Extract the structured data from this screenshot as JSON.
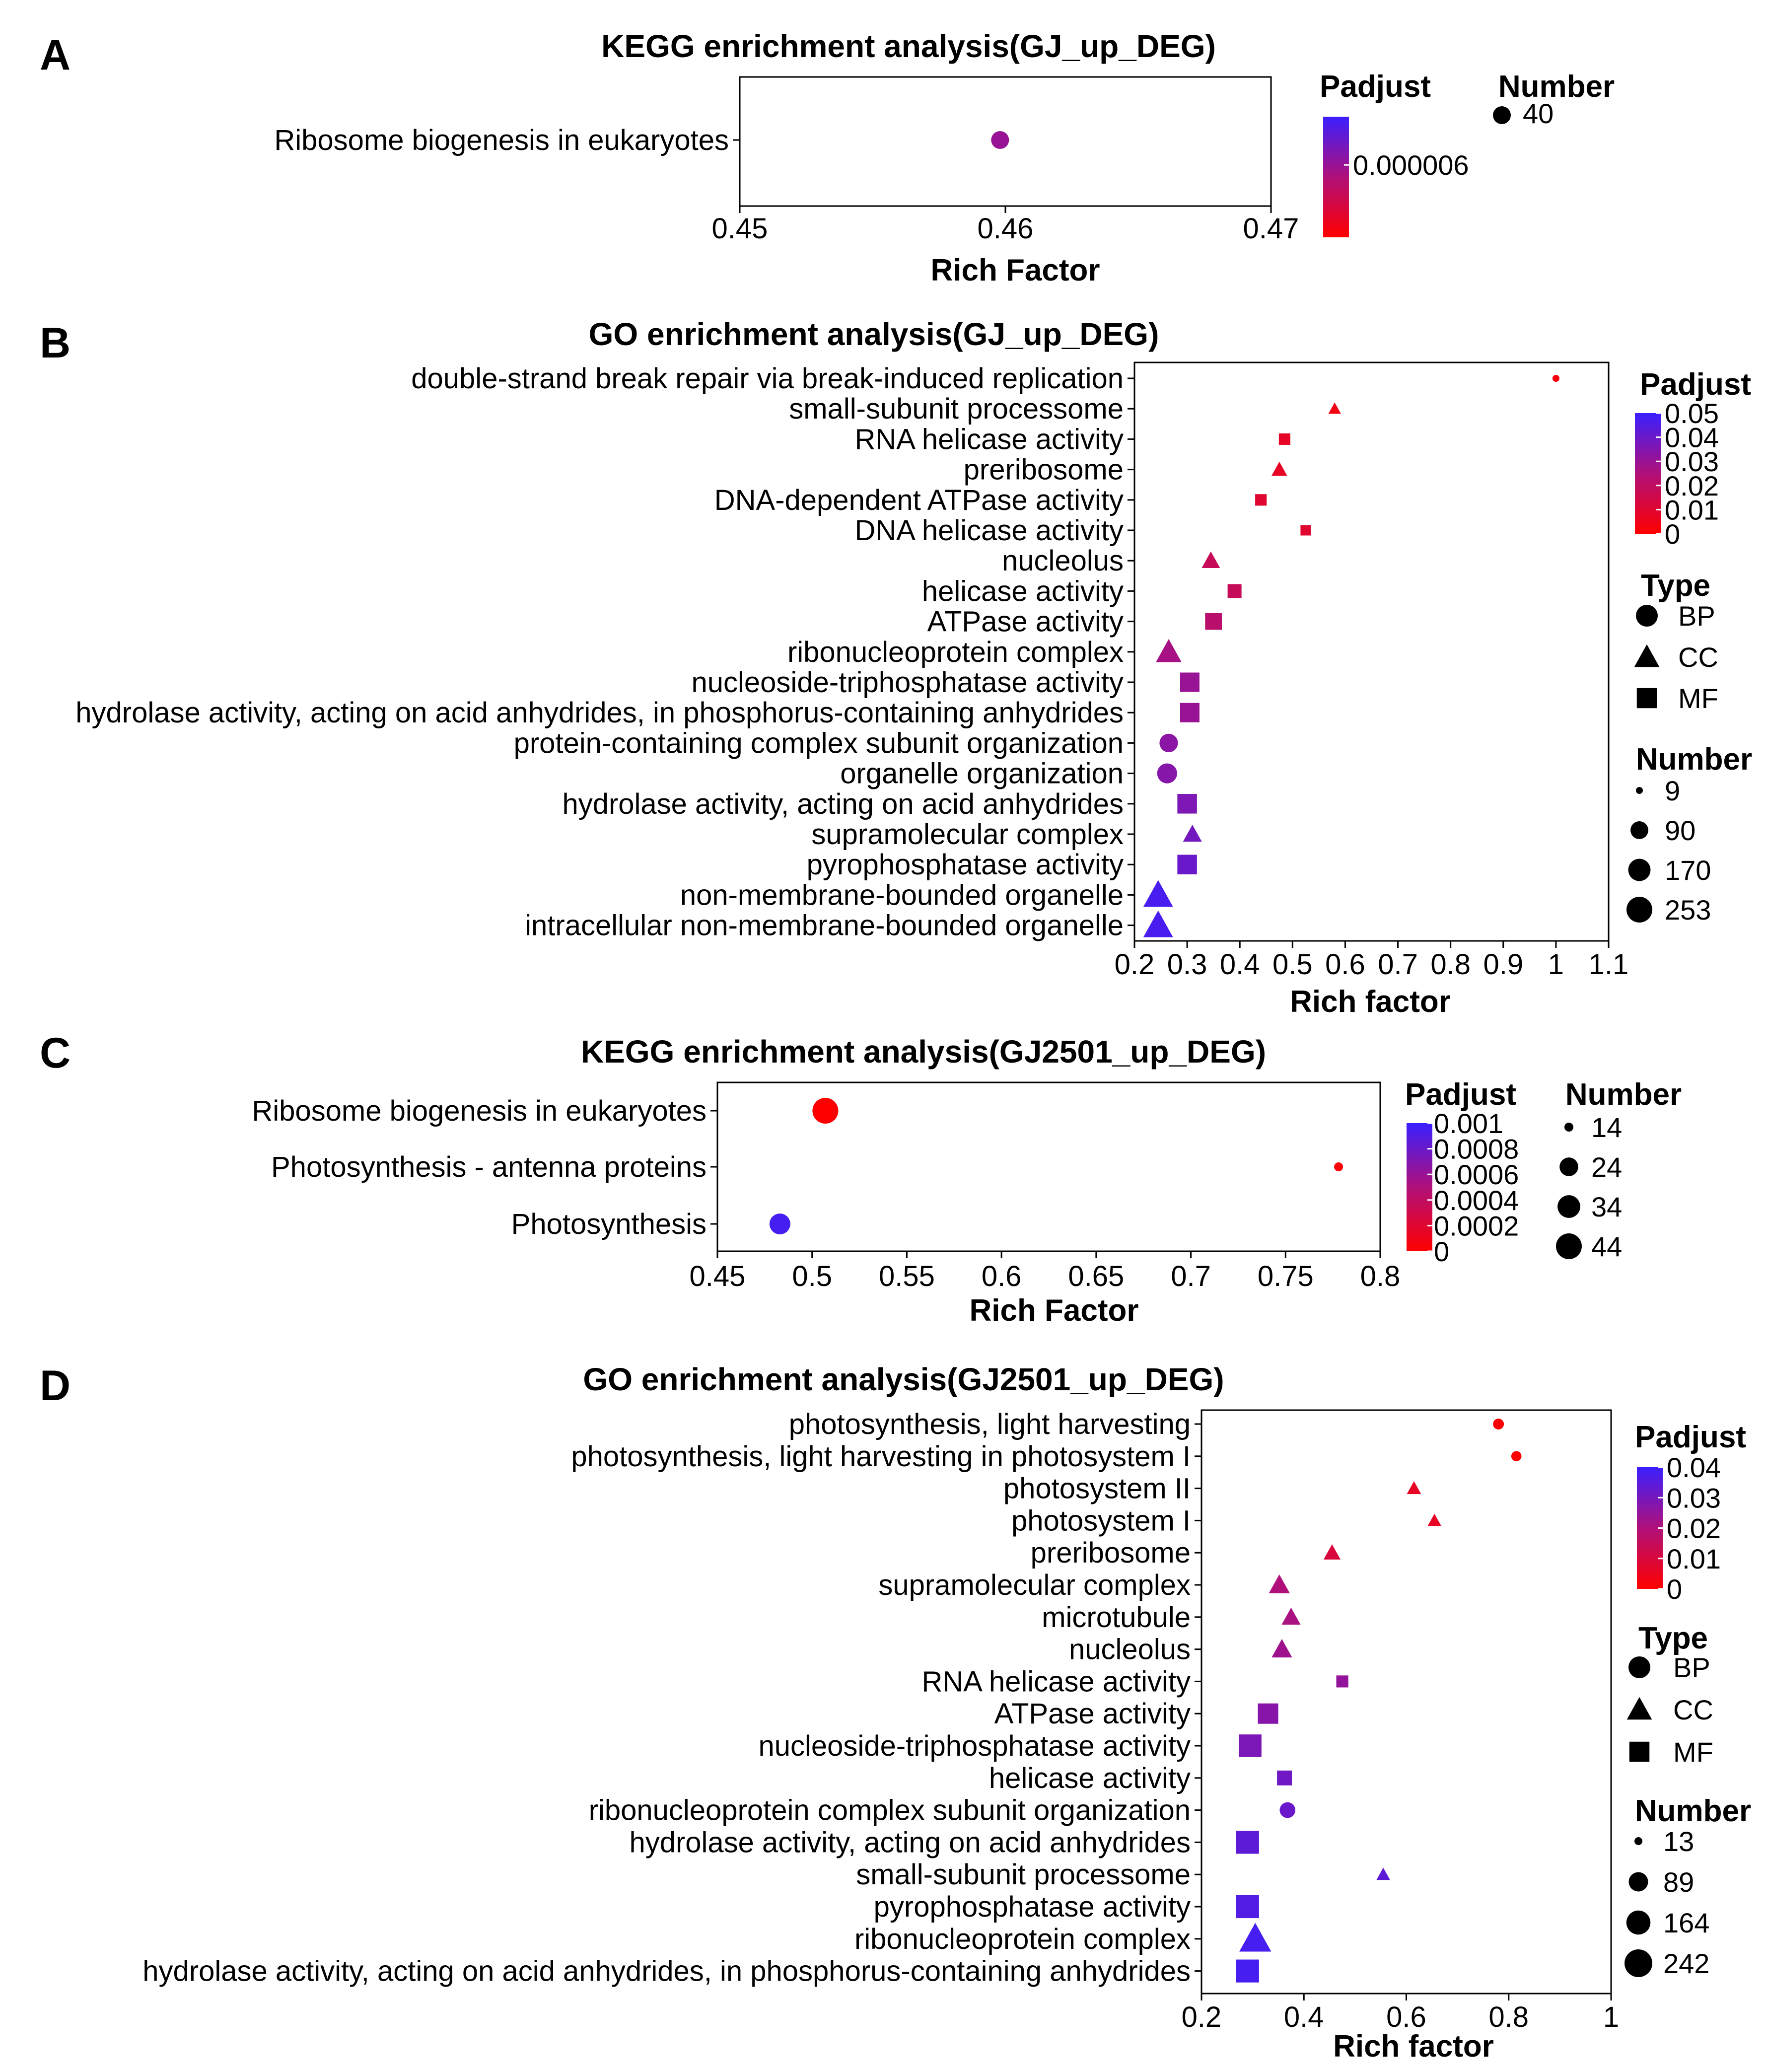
{
  "chart_data": [
    {
      "panel": "A",
      "type": "scatter",
      "title": "KEGG enrichment analysis(GJ_up_DEG)",
      "xlabel": "Rich Factor",
      "ylabel": "",
      "xlim": [
        0.45,
        0.47
      ],
      "xticks": [
        0.45,
        0.46,
        0.47
      ],
      "xtick_labels": [
        "0.45",
        "0.46",
        "0.47"
      ],
      "grid": false,
      "categories": [
        "Ribosome biogenesis in eukaryotes"
      ],
      "points": [
        {
          "term": "Ribosome biogenesis in eukaryotes",
          "x": 0.4598,
          "count": 40,
          "padj": 6e-06
        }
      ],
      "padj_legend": {
        "title": "Padjust",
        "range": [
          0,
          1e-05
        ],
        "ticks": [
          6e-06
        ],
        "tick_labels": [
          "0.000006"
        ]
      },
      "number_legend": {
        "title": "Number",
        "values": [
          40
        ],
        "labels": [
          "40"
        ]
      },
      "colors": {
        "low": "#ff0000",
        "high": "#3b1fff"
      }
    },
    {
      "panel": "B",
      "type": "scatter",
      "title": "GO enrichment analysis(GJ_up_DEG)",
      "xlabel": "Rich factor",
      "ylabel": "",
      "xlim": [
        0.2,
        1.1
      ],
      "xticks": [
        0.2,
        0.3,
        0.4,
        0.5,
        0.6,
        0.7,
        0.8,
        0.9,
        1,
        1.1
      ],
      "xtick_labels": [
        "0.2",
        "0.3",
        "0.4",
        "0.5",
        "0.6",
        "0.7",
        "0.8",
        "0.9",
        "1",
        "1.1"
      ],
      "grid": false,
      "categories": [
        "double-strand break repair via break-induced replication",
        "small-subunit processome",
        "RNA helicase activity",
        "preribosome",
        "DNA-dependent ATPase activity",
        "DNA helicase activity",
        "nucleolus",
        "helicase activity",
        "ATPase activity",
        "ribonucleoprotein complex",
        "nucleoside-triphosphatase activity",
        "hydrolase activity, acting on acid anhydrides, in phosphorus-containing anhydrides",
        "protein-containing complex subunit organization",
        "organelle organization",
        "hydrolase activity, acting on acid anhydrides",
        "supramolecular complex",
        "pyrophosphatase activity",
        "non-membrane-bounded organelle",
        "intracellular non-membrane-bounded organelle"
      ],
      "points": [
        {
          "x": 1.0,
          "count": 9,
          "type": "BP",
          "padj": 0.002
        },
        {
          "x": 0.58,
          "count": 20,
          "type": "CC",
          "padj": 0.004
        },
        {
          "x": 0.485,
          "count": 30,
          "type": "MF",
          "padj": 0.008
        },
        {
          "x": 0.475,
          "count": 40,
          "type": "CC",
          "padj": 0.008
        },
        {
          "x": 0.44,
          "count": 30,
          "type": "MF",
          "padj": 0.01
        },
        {
          "x": 0.525,
          "count": 22,
          "type": "MF",
          "padj": 0.01
        },
        {
          "x": 0.345,
          "count": 65,
          "type": "CC",
          "padj": 0.018
        },
        {
          "x": 0.39,
          "count": 55,
          "type": "MF",
          "padj": 0.018
        },
        {
          "x": 0.35,
          "count": 95,
          "type": "MF",
          "padj": 0.022
        },
        {
          "x": 0.265,
          "count": 170,
          "type": "CC",
          "padj": 0.027
        },
        {
          "x": 0.305,
          "count": 145,
          "type": "MF",
          "padj": 0.03
        },
        {
          "x": 0.305,
          "count": 145,
          "type": "MF",
          "padj": 0.03
        },
        {
          "x": 0.265,
          "count": 100,
          "type": "BP",
          "padj": 0.033
        },
        {
          "x": 0.262,
          "count": 125,
          "type": "BP",
          "padj": 0.034
        },
        {
          "x": 0.3,
          "count": 150,
          "type": "MF",
          "padj": 0.036
        },
        {
          "x": 0.31,
          "count": 70,
          "type": "CC",
          "padj": 0.038
        },
        {
          "x": 0.3,
          "count": 150,
          "type": "MF",
          "padj": 0.04
        },
        {
          "x": 0.245,
          "count": 253,
          "type": "CC",
          "padj": 0.047
        },
        {
          "x": 0.245,
          "count": 253,
          "type": "CC",
          "padj": 0.047
        }
      ],
      "padj_legend": {
        "title": "Padjust",
        "range": [
          0,
          0.05
        ],
        "ticks": [
          0.05,
          0.04,
          0.03,
          0.02,
          0.01,
          0
        ],
        "tick_labels": [
          "0.05",
          "0.04",
          "0.03",
          "0.02",
          "0.01",
          "0"
        ]
      },
      "type_legend": {
        "title": "Type",
        "items": [
          {
            "label": "BP",
            "shape": "circle"
          },
          {
            "label": "CC",
            "shape": "triangle"
          },
          {
            "label": "MF",
            "shape": "square"
          }
        ]
      },
      "number_legend": {
        "title": "Number",
        "values": [
          9,
          90,
          170,
          253
        ],
        "labels": [
          "9",
          "90",
          "170",
          "253"
        ]
      },
      "colors": {
        "low": "#ff0000",
        "high": "#3b1fff"
      }
    },
    {
      "panel": "C",
      "type": "scatter",
      "title": "KEGG enrichment analysis(GJ2501_up_DEG)",
      "xlabel": "Rich Factor",
      "ylabel": "",
      "xlim": [
        0.45,
        0.8
      ],
      "xticks": [
        0.45,
        0.5,
        0.55,
        0.6,
        0.65,
        0.7,
        0.75,
        0.8
      ],
      "xtick_labels": [
        "0.45",
        "0.5",
        "0.55",
        "0.6",
        "0.65",
        "0.7",
        "0.75",
        "0.8"
      ],
      "grid": false,
      "categories": [
        "Ribosome biogenesis in eukaryotes",
        "Photosynthesis - antenna proteins",
        "Photosynthesis"
      ],
      "points": [
        {
          "x": 0.507,
          "count": 44,
          "padj": 1e-05
        },
        {
          "x": 0.778,
          "count": 14,
          "padj": 2e-05
        },
        {
          "x": 0.483,
          "count": 29,
          "padj": 0.00095
        }
      ],
      "padj_legend": {
        "title": "Padjust",
        "range": [
          0,
          0.001
        ],
        "ticks": [
          0.001,
          0.0008,
          0.0006,
          0.0004,
          0.0002,
          0
        ],
        "tick_labels": [
          "0.001",
          "0.0008",
          "0.0006",
          "0.0004",
          "0.0002",
          "0"
        ]
      },
      "number_legend": {
        "title": "Number",
        "values": [
          14,
          24,
          34,
          44
        ],
        "labels": [
          "14",
          "24",
          "34",
          "44"
        ]
      },
      "colors": {
        "low": "#ff0000",
        "high": "#3b1fff"
      }
    },
    {
      "panel": "D",
      "type": "scatter",
      "title": "GO enrichment analysis(GJ2501_up_DEG)",
      "xlabel": "Rich factor",
      "ylabel": "",
      "xlim": [
        0.2,
        1.0
      ],
      "xticks": [
        0.2,
        0.4,
        0.6,
        0.8,
        1
      ],
      "xtick_labels": [
        "0.2",
        "0.4",
        "0.6",
        "0.8",
        "1"
      ],
      "grid": false,
      "categories": [
        "photosynthesis, light harvesting",
        "photosynthesis, light harvesting in photosystem I",
        "photosystem II",
        "photosystem I",
        "preribosome",
        "supramolecular complex",
        "microtubule",
        "nucleolus",
        "RNA helicase activity",
        "ATPase activity",
        "nucleoside-triphosphatase activity",
        "helicase activity",
        "ribonucleoprotein complex subunit organization",
        "hydrolase activity, acting on acid anhydrides",
        "small-subunit processome",
        "pyrophosphatase activity",
        "ribonucleoprotein complex",
        "hydrolase activity, acting on acid anhydrides, in phosphorus-containing anhydrides"
      ],
      "points": [
        {
          "x": 0.78,
          "count": 18,
          "type": "BP",
          "padj": 0.001
        },
        {
          "x": 0.815,
          "count": 16,
          "type": "BP",
          "padj": 0.001
        },
        {
          "x": 0.615,
          "count": 25,
          "type": "CC",
          "padj": 0.006
        },
        {
          "x": 0.655,
          "count": 22,
          "type": "CC",
          "padj": 0.006
        },
        {
          "x": 0.455,
          "count": 40,
          "type": "CC",
          "padj": 0.01
        },
        {
          "x": 0.352,
          "count": 75,
          "type": "CC",
          "padj": 0.02
        },
        {
          "x": 0.375,
          "count": 55,
          "type": "CC",
          "padj": 0.021
        },
        {
          "x": 0.357,
          "count": 70,
          "type": "CC",
          "padj": 0.023
        },
        {
          "x": 0.475,
          "count": 28,
          "type": "MF",
          "padj": 0.025
        },
        {
          "x": 0.33,
          "count": 130,
          "type": "MF",
          "padj": 0.027
        },
        {
          "x": 0.295,
          "count": 175,
          "type": "MF",
          "padj": 0.029
        },
        {
          "x": 0.362,
          "count": 52,
          "type": "MF",
          "padj": 0.031
        },
        {
          "x": 0.368,
          "count": 48,
          "type": "BP",
          "padj": 0.032
        },
        {
          "x": 0.29,
          "count": 180,
          "type": "MF",
          "padj": 0.034
        },
        {
          "x": 0.555,
          "count": 22,
          "type": "CC",
          "padj": 0.034
        },
        {
          "x": 0.29,
          "count": 180,
          "type": "MF",
          "padj": 0.036
        },
        {
          "x": 0.305,
          "count": 242,
          "type": "CC",
          "padj": 0.038
        },
        {
          "x": 0.29,
          "count": 180,
          "type": "MF",
          "padj": 0.038
        }
      ],
      "padj_legend": {
        "title": "Padjust",
        "range": [
          0,
          0.04
        ],
        "ticks": [
          0.04,
          0.03,
          0.02,
          0.01,
          0
        ],
        "tick_labels": [
          "0.04",
          "0.03",
          "0.02",
          "0.01",
          "0"
        ]
      },
      "type_legend": {
        "title": "Type",
        "items": [
          {
            "label": "BP",
            "shape": "circle"
          },
          {
            "label": "CC",
            "shape": "triangle"
          },
          {
            "label": "MF",
            "shape": "square"
          }
        ]
      },
      "number_legend": {
        "title": "Number",
        "values": [
          13,
          89,
          164,
          242
        ],
        "labels": [
          "13",
          "89",
          "164",
          "242"
        ]
      },
      "colors": {
        "low": "#ff0000",
        "high": "#3b1fff"
      }
    }
  ]
}
